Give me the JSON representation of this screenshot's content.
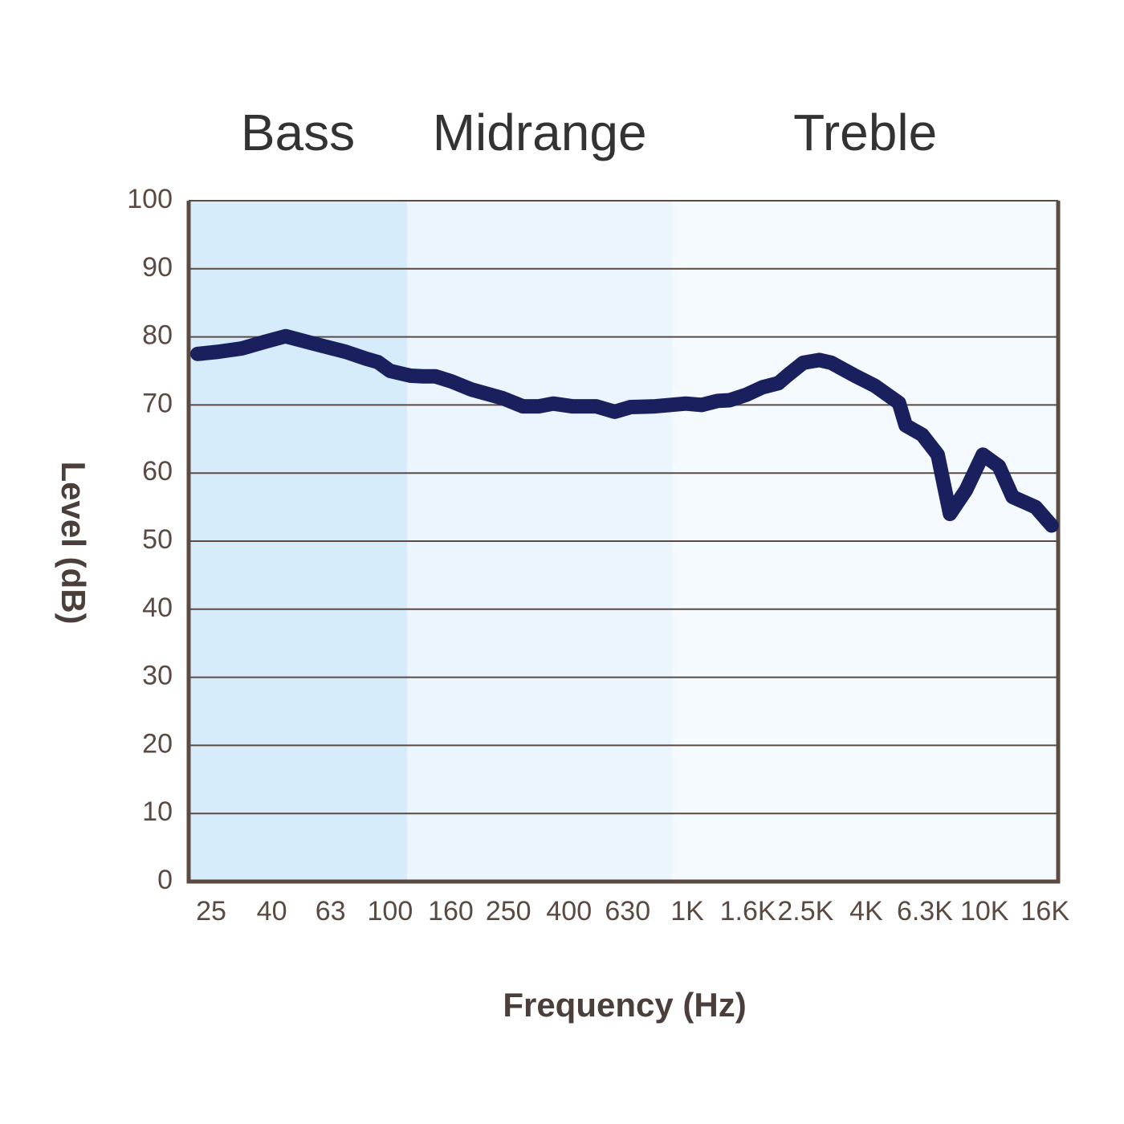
{
  "chart_data": {
    "type": "line",
    "xlabel": "Frequency (Hz)",
    "ylabel": "Level (dB)",
    "xscale": "log",
    "xlim": [
      21,
      17700
    ],
    "ylim": [
      0,
      100
    ],
    "yticks": [
      0,
      10,
      20,
      30,
      40,
      50,
      60,
      70,
      80,
      90,
      100
    ],
    "xticks": [
      25,
      40,
      63,
      100,
      160,
      250,
      400,
      630,
      {
        "value": 1000,
        "label": "1K"
      },
      {
        "value": 1600,
        "label": "1.6K"
      },
      {
        "value": 2500,
        "label": "2.5K"
      },
      {
        "value": 4000,
        "label": "4K"
      },
      {
        "value": 6300,
        "label": "6.3K"
      },
      {
        "value": 10000,
        "label": "10K"
      },
      {
        "value": 16000,
        "label": "16K"
      }
    ],
    "grid": true,
    "regions": [
      {
        "label": "Bass",
        "from": 21,
        "to": 114,
        "color": "#d6ecfb"
      },
      {
        "label": "Midrange",
        "from": 114,
        "to": 890,
        "color": "#eaf5fd"
      },
      {
        "label": "Treble",
        "from": 890,
        "to": 17700,
        "color": "#f5fafe"
      }
    ],
    "x": [
      22.5,
      26.3,
      31.7,
      38.1,
      44.5,
      55.4,
      71,
      83,
      91,
      100,
      117,
      129,
      142,
      160,
      187,
      239,
      280,
      317,
      354,
      410,
      494,
      570,
      646,
      779,
      988,
      1118,
      1266,
      1390,
      1580,
      1790,
      2026,
      2167,
      2454,
      2783,
      3050,
      3665,
      4283,
      5156,
      5430,
      6180,
      6960,
      7654,
      8667,
      9876,
      11180,
      12430,
      14850,
      16820
    ],
    "series": [
      {
        "color": "#1a1f5e",
        "values": [
          77.5,
          77.8,
          78.3,
          79.3,
          80.1,
          79,
          77.8,
          76.8,
          76.3,
          75,
          74.3,
          74.2,
          74.2,
          73.5,
          72.3,
          71,
          69.8,
          69.8,
          70.2,
          69.8,
          69.8,
          69,
          69.7,
          69.8,
          70.2,
          70,
          70.6,
          70.7,
          71.5,
          72.6,
          73.2,
          74.3,
          76.2,
          76.6,
          76.2,
          74.3,
          72.8,
          70.3,
          67,
          65.6,
          62.7,
          54,
          57.5,
          62.7,
          61,
          56.5,
          55,
          52.3
        ]
      }
    ]
  }
}
